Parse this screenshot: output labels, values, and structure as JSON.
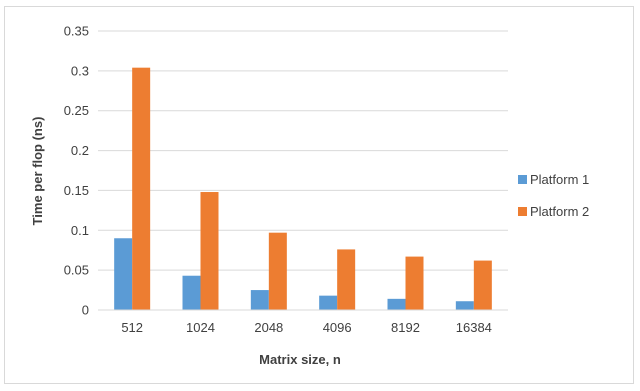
{
  "chart_data": {
    "type": "bar",
    "title": "",
    "xlabel": "Matrix size, n",
    "ylabel": "Time per flop (ns)",
    "categories": [
      "512",
      "1024",
      "2048",
      "4096",
      "8192",
      "16384"
    ],
    "series": [
      {
        "name": "Platform 1",
        "color": "#5b9bd5",
        "values": [
          0.09,
          0.043,
          0.025,
          0.018,
          0.014,
          0.011
        ]
      },
      {
        "name": "Platform 2",
        "color": "#ed7d31",
        "values": [
          0.304,
          0.148,
          0.097,
          0.076,
          0.067,
          0.062
        ]
      }
    ],
    "ylim": [
      0,
      0.35
    ],
    "yticks": [
      "0",
      "0.05",
      "0.1",
      "0.15",
      "0.2",
      "0.25",
      "0.3",
      "0.35"
    ],
    "grid": true,
    "legend_position": "right"
  }
}
